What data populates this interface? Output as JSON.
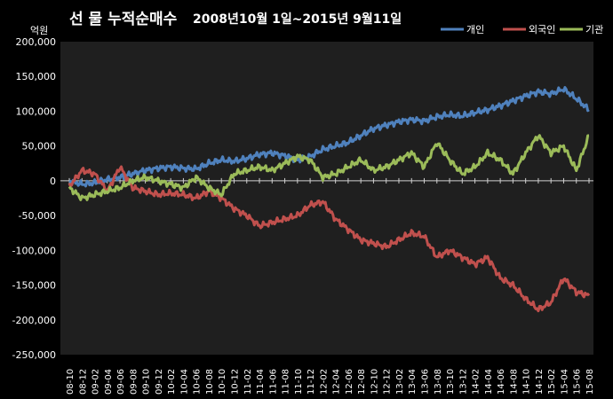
{
  "chart_data": {
    "type": "line",
    "title": "선 물 누적순매수",
    "subtitle": "2008년10월 1일~2015년 9월11일",
    "ylabel": "억원",
    "xlabel": "",
    "ylim": [
      -250000,
      200000
    ],
    "yticks": [
      200000,
      150000,
      100000,
      50000,
      0,
      -50000,
      -100000,
      -150000,
      -200000,
      -250000
    ],
    "ytick_labels": [
      "200,000",
      "150,000",
      "100,000",
      "50,000",
      "0",
      "-50,000",
      "-100,000",
      "-150,000",
      "-200,000",
      "-250,000"
    ],
    "categories": [
      "08-10",
      "08-12",
      "09-02",
      "09-04",
      "09-06",
      "09-08",
      "09-10",
      "09-12",
      "10-02",
      "10-04",
      "10-06",
      "10-08",
      "10-10",
      "10-12",
      "11-02",
      "11-04",
      "11-06",
      "11-08",
      "11-10",
      "11-12",
      "12-02",
      "12-04",
      "12-06",
      "12-08",
      "12-10",
      "12-12",
      "13-02",
      "13-04",
      "13-06",
      "13-08",
      "13-10",
      "13-12",
      "14-02",
      "14-04",
      "14-06",
      "14-08",
      "14-10",
      "14-12",
      "15-02",
      "15-04",
      "15-06",
      "15-08"
    ],
    "grid": false,
    "legend_position": "top-right",
    "series": [
      {
        "name": "개인",
        "color": "#4F81BD",
        "values": [
          0,
          -5000,
          -3000,
          2000,
          5000,
          10000,
          15000,
          18000,
          20000,
          18000,
          17000,
          25000,
          30000,
          28000,
          32000,
          38000,
          40000,
          36000,
          30000,
          35000,
          45000,
          50000,
          55000,
          65000,
          75000,
          80000,
          85000,
          88000,
          86000,
          92000,
          95000,
          93000,
          98000,
          102000,
          108000,
          115000,
          122000,
          128000,
          125000,
          132000,
          118000,
          102000
        ]
      },
      {
        "name": "외국인",
        "color": "#C0504D",
        "values": [
          -8000,
          15000,
          10000,
          -15000,
          20000,
          -10000,
          -15000,
          -20000,
          -18000,
          -20000,
          -25000,
          -15000,
          -25000,
          -40000,
          -50000,
          -65000,
          -60000,
          -55000,
          -50000,
          -35000,
          -30000,
          -55000,
          -70000,
          -85000,
          -90000,
          -95000,
          -85000,
          -75000,
          -80000,
          -110000,
          -100000,
          -110000,
          -120000,
          -110000,
          -140000,
          -150000,
          -170000,
          -185000,
          -175000,
          -140000,
          -160000,
          -165000
        ]
      },
      {
        "name": "기관",
        "color": "#9BBB59",
        "values": [
          -10000,
          -25000,
          -20000,
          -15000,
          -10000,
          0,
          5000,
          0,
          -5000,
          -10000,
          5000,
          -10000,
          -20000,
          10000,
          15000,
          20000,
          15000,
          25000,
          35000,
          30000,
          5000,
          10000,
          20000,
          30000,
          15000,
          20000,
          30000,
          40000,
          20000,
          55000,
          30000,
          10000,
          20000,
          40000,
          30000,
          10000,
          40000,
          65000,
          40000,
          50000,
          15000,
          65000
        ]
      }
    ]
  }
}
